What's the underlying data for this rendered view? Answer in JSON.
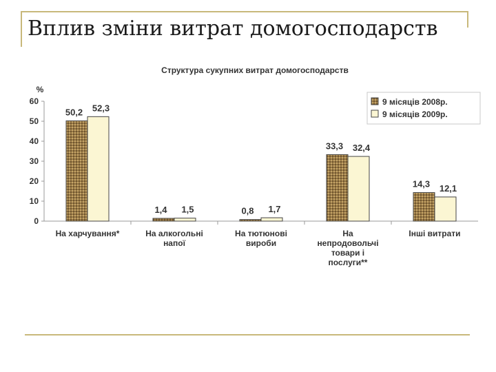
{
  "slide": {
    "title": "Вплив зміни витрат домогосподарств"
  },
  "chart_data": {
    "type": "bar",
    "title": "Структура сукупних витрат домогосподарств",
    "ylabel": "%",
    "xlabel": "",
    "ylim": [
      0,
      60
    ],
    "yticks": [
      0,
      10,
      20,
      30,
      40,
      50,
      60
    ],
    "categories": [
      [
        "На харчування*"
      ],
      [
        "На алкогольні",
        "напої"
      ],
      [
        "На тютюнові",
        "вироби"
      ],
      [
        "На",
        "непродовольчі",
        "товари і",
        "послуги**"
      ],
      [
        "Інші витрати"
      ]
    ],
    "series": [
      {
        "name": "9 місяців 2008р.",
        "values": [
          50.2,
          1.4,
          0.8,
          33.3,
          14.3
        ],
        "labels": [
          "50,2",
          "1,4",
          "0,8",
          "33,3",
          "14,3"
        ],
        "color": "#a0804a"
      },
      {
        "name": "9 місяців 2009р.",
        "values": [
          52.3,
          1.5,
          1.7,
          32.4,
          12.1
        ],
        "labels": [
          "52,3",
          "1,5",
          "1,7",
          "32,4",
          "12,1"
        ],
        "color": "#fbf6d3"
      }
    ],
    "grid": false,
    "legend": "top-right"
  }
}
